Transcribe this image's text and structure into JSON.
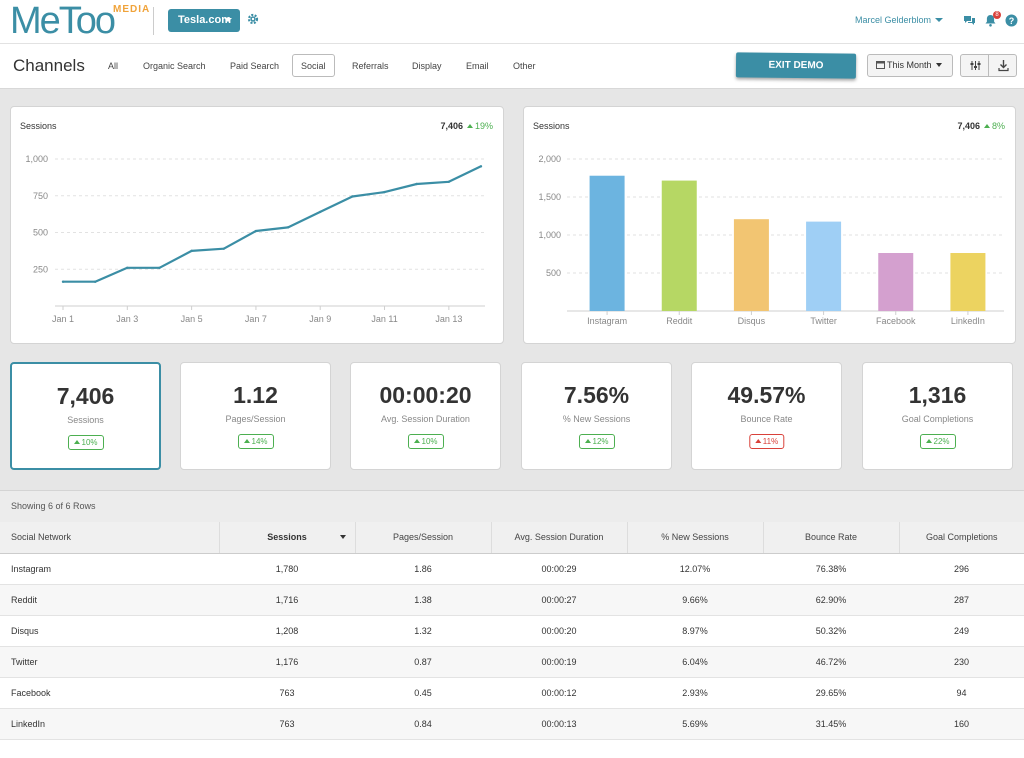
{
  "brand": {
    "logo_text": "MeToo",
    "logo_sub": "MEDIA",
    "accent": "#3b8ea5",
    "positive": "#4caf50",
    "negative": "#d9413a"
  },
  "topbar": {
    "account": "Tesla.com",
    "user": "Marcel Gelderblom",
    "notification_count": "8",
    "icons": [
      "gear-icon",
      "chat-icon",
      "bell-icon",
      "help-icon"
    ]
  },
  "nav": {
    "title": "Channels",
    "tabs": [
      "All",
      "Organic Search",
      "Paid Search",
      "Social",
      "Referrals",
      "Display",
      "Email",
      "Other"
    ],
    "active_tab": "Social",
    "exit_demo": "EXIT DEMO",
    "date_range": "This Month"
  },
  "line_card": {
    "title": "Sessions",
    "total": "7,406",
    "change": "19%"
  },
  "bar_card": {
    "title": "Sessions",
    "total": "7,406",
    "change": "8%"
  },
  "chart_data": [
    {
      "type": "line",
      "title": "Sessions",
      "x": [
        "Jan 1",
        "Jan 2",
        "Jan 3",
        "Jan 4",
        "Jan 5",
        "Jan 6",
        "Jan 7",
        "Jan 8",
        "Jan 9",
        "Jan 10",
        "Jan 11",
        "Jan 12",
        "Jan 13",
        "Jan 14"
      ],
      "x_tick_labels": [
        "Jan 1",
        "Jan 3",
        "Jan 5",
        "Jan 7",
        "Jan 9",
        "Jan 11",
        "Jan 13"
      ],
      "values": [
        165,
        165,
        260,
        260,
        375,
        390,
        510,
        535,
        640,
        745,
        775,
        830,
        845,
        950
      ],
      "ylim": [
        0,
        1000
      ],
      "y_ticks": [
        250,
        500,
        750,
        1000
      ],
      "y_tick_labels": [
        "250",
        "500",
        "750",
        "1,000"
      ],
      "color": "#3b8ea5",
      "grid": true
    },
    {
      "type": "bar",
      "title": "Sessions",
      "categories": [
        "Instagram",
        "Reddit",
        "Disqus",
        "Twitter",
        "Facebook",
        "LinkedIn"
      ],
      "values": [
        1780,
        1716,
        1208,
        1176,
        763,
        763
      ],
      "colors": [
        "#6cb4e0",
        "#b6d764",
        "#f2c572",
        "#9fcff5",
        "#d4a0cf",
        "#ecd360"
      ],
      "ylim": [
        0,
        2000
      ],
      "y_ticks": [
        500,
        1000,
        1500,
        2000
      ],
      "y_tick_labels": [
        "500",
        "1,000",
        "1,500",
        "2,000"
      ],
      "grid": true
    }
  ],
  "kpis": [
    {
      "value": "7,406",
      "label": "Sessions",
      "change": "10%",
      "trend": "good"
    },
    {
      "value": "1.12",
      "label": "Pages/Session",
      "change": "14%",
      "trend": "good"
    },
    {
      "value": "00:00:20",
      "label": "Avg. Session Duration",
      "change": "10%",
      "trend": "good"
    },
    {
      "value": "7.56%",
      "label": "% New Sessions",
      "change": "12%",
      "trend": "good"
    },
    {
      "value": "49.57%",
      "label": "Bounce Rate",
      "change": "11%",
      "trend": "bad"
    },
    {
      "value": "1,316",
      "label": "Goal Completions",
      "change": "22%",
      "trend": "good"
    }
  ],
  "table": {
    "showing": "Showing 6 of 6 Rows",
    "columns": [
      "Social Network",
      "Sessions",
      "Pages/Session",
      "Avg. Session Duration",
      "% New Sessions",
      "Bounce Rate",
      "Goal Completions"
    ],
    "sorted_column": "Sessions",
    "rows": [
      [
        "Instagram",
        "1,780",
        "1.86",
        "00:00:29",
        "12.07%",
        "76.38%",
        "296"
      ],
      [
        "Reddit",
        "1,716",
        "1.38",
        "00:00:27",
        "9.66%",
        "62.90%",
        "287"
      ],
      [
        "Disqus",
        "1,208",
        "1.32",
        "00:00:20",
        "8.97%",
        "50.32%",
        "249"
      ],
      [
        "Twitter",
        "1,176",
        "0.87",
        "00:00:19",
        "6.04%",
        "46.72%",
        "230"
      ],
      [
        "Facebook",
        "763",
        "0.45",
        "00:00:12",
        "2.93%",
        "29.65%",
        "94"
      ],
      [
        "LinkedIn",
        "763",
        "0.84",
        "00:00:13",
        "5.69%",
        "31.45%",
        "160"
      ]
    ]
  }
}
